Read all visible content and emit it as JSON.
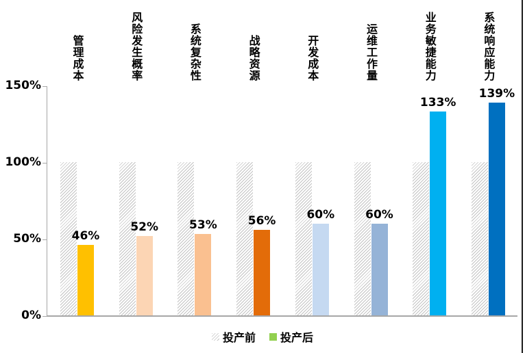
{
  "chart_data": {
    "type": "bar",
    "title": "",
    "categories": [
      "管理成本",
      "风险发生概率",
      "系统复杂性",
      "战略资源",
      "开发成本",
      "运维工作量",
      "业务敏捷能力",
      "系统响应能力"
    ],
    "series": [
      {
        "name": "投产前",
        "style": "hatched-gray",
        "values": [
          100,
          100,
          100,
          100,
          100,
          100,
          100,
          100
        ]
      },
      {
        "name": "投产后",
        "style": "solid-per-point",
        "values": [
          46,
          52,
          53,
          56,
          60,
          60,
          133,
          139
        ],
        "colors": [
          "#FFC000",
          "#FCD5B4",
          "#FAC090",
          "#E36C09",
          "#C5D9F1",
          "#95B3D7",
          "#00B0F0",
          "#0070C0"
        ]
      }
    ],
    "data_labels": [
      "46%",
      "52%",
      "53%",
      "56%",
      "60%",
      "60%",
      "133%",
      "139%"
    ],
    "y_ticks": [
      {
        "label": "0%",
        "value": 0
      },
      {
        "label": "50%",
        "value": 50
      },
      {
        "label": "100%",
        "value": 100
      },
      {
        "label": "150%",
        "value": 150
      }
    ],
    "ylim": [
      0,
      150
    ],
    "grid": false,
    "legend_position": "bottom-center",
    "legend": [
      {
        "label": "投产前",
        "swatch": "hatched"
      },
      {
        "label": "投产后",
        "swatch": "solid",
        "swatch_color": "#92D050"
      }
    ],
    "axis_color": "#A6A6A6",
    "hatch_color": "#C3C3C3"
  },
  "layout_note": ""
}
